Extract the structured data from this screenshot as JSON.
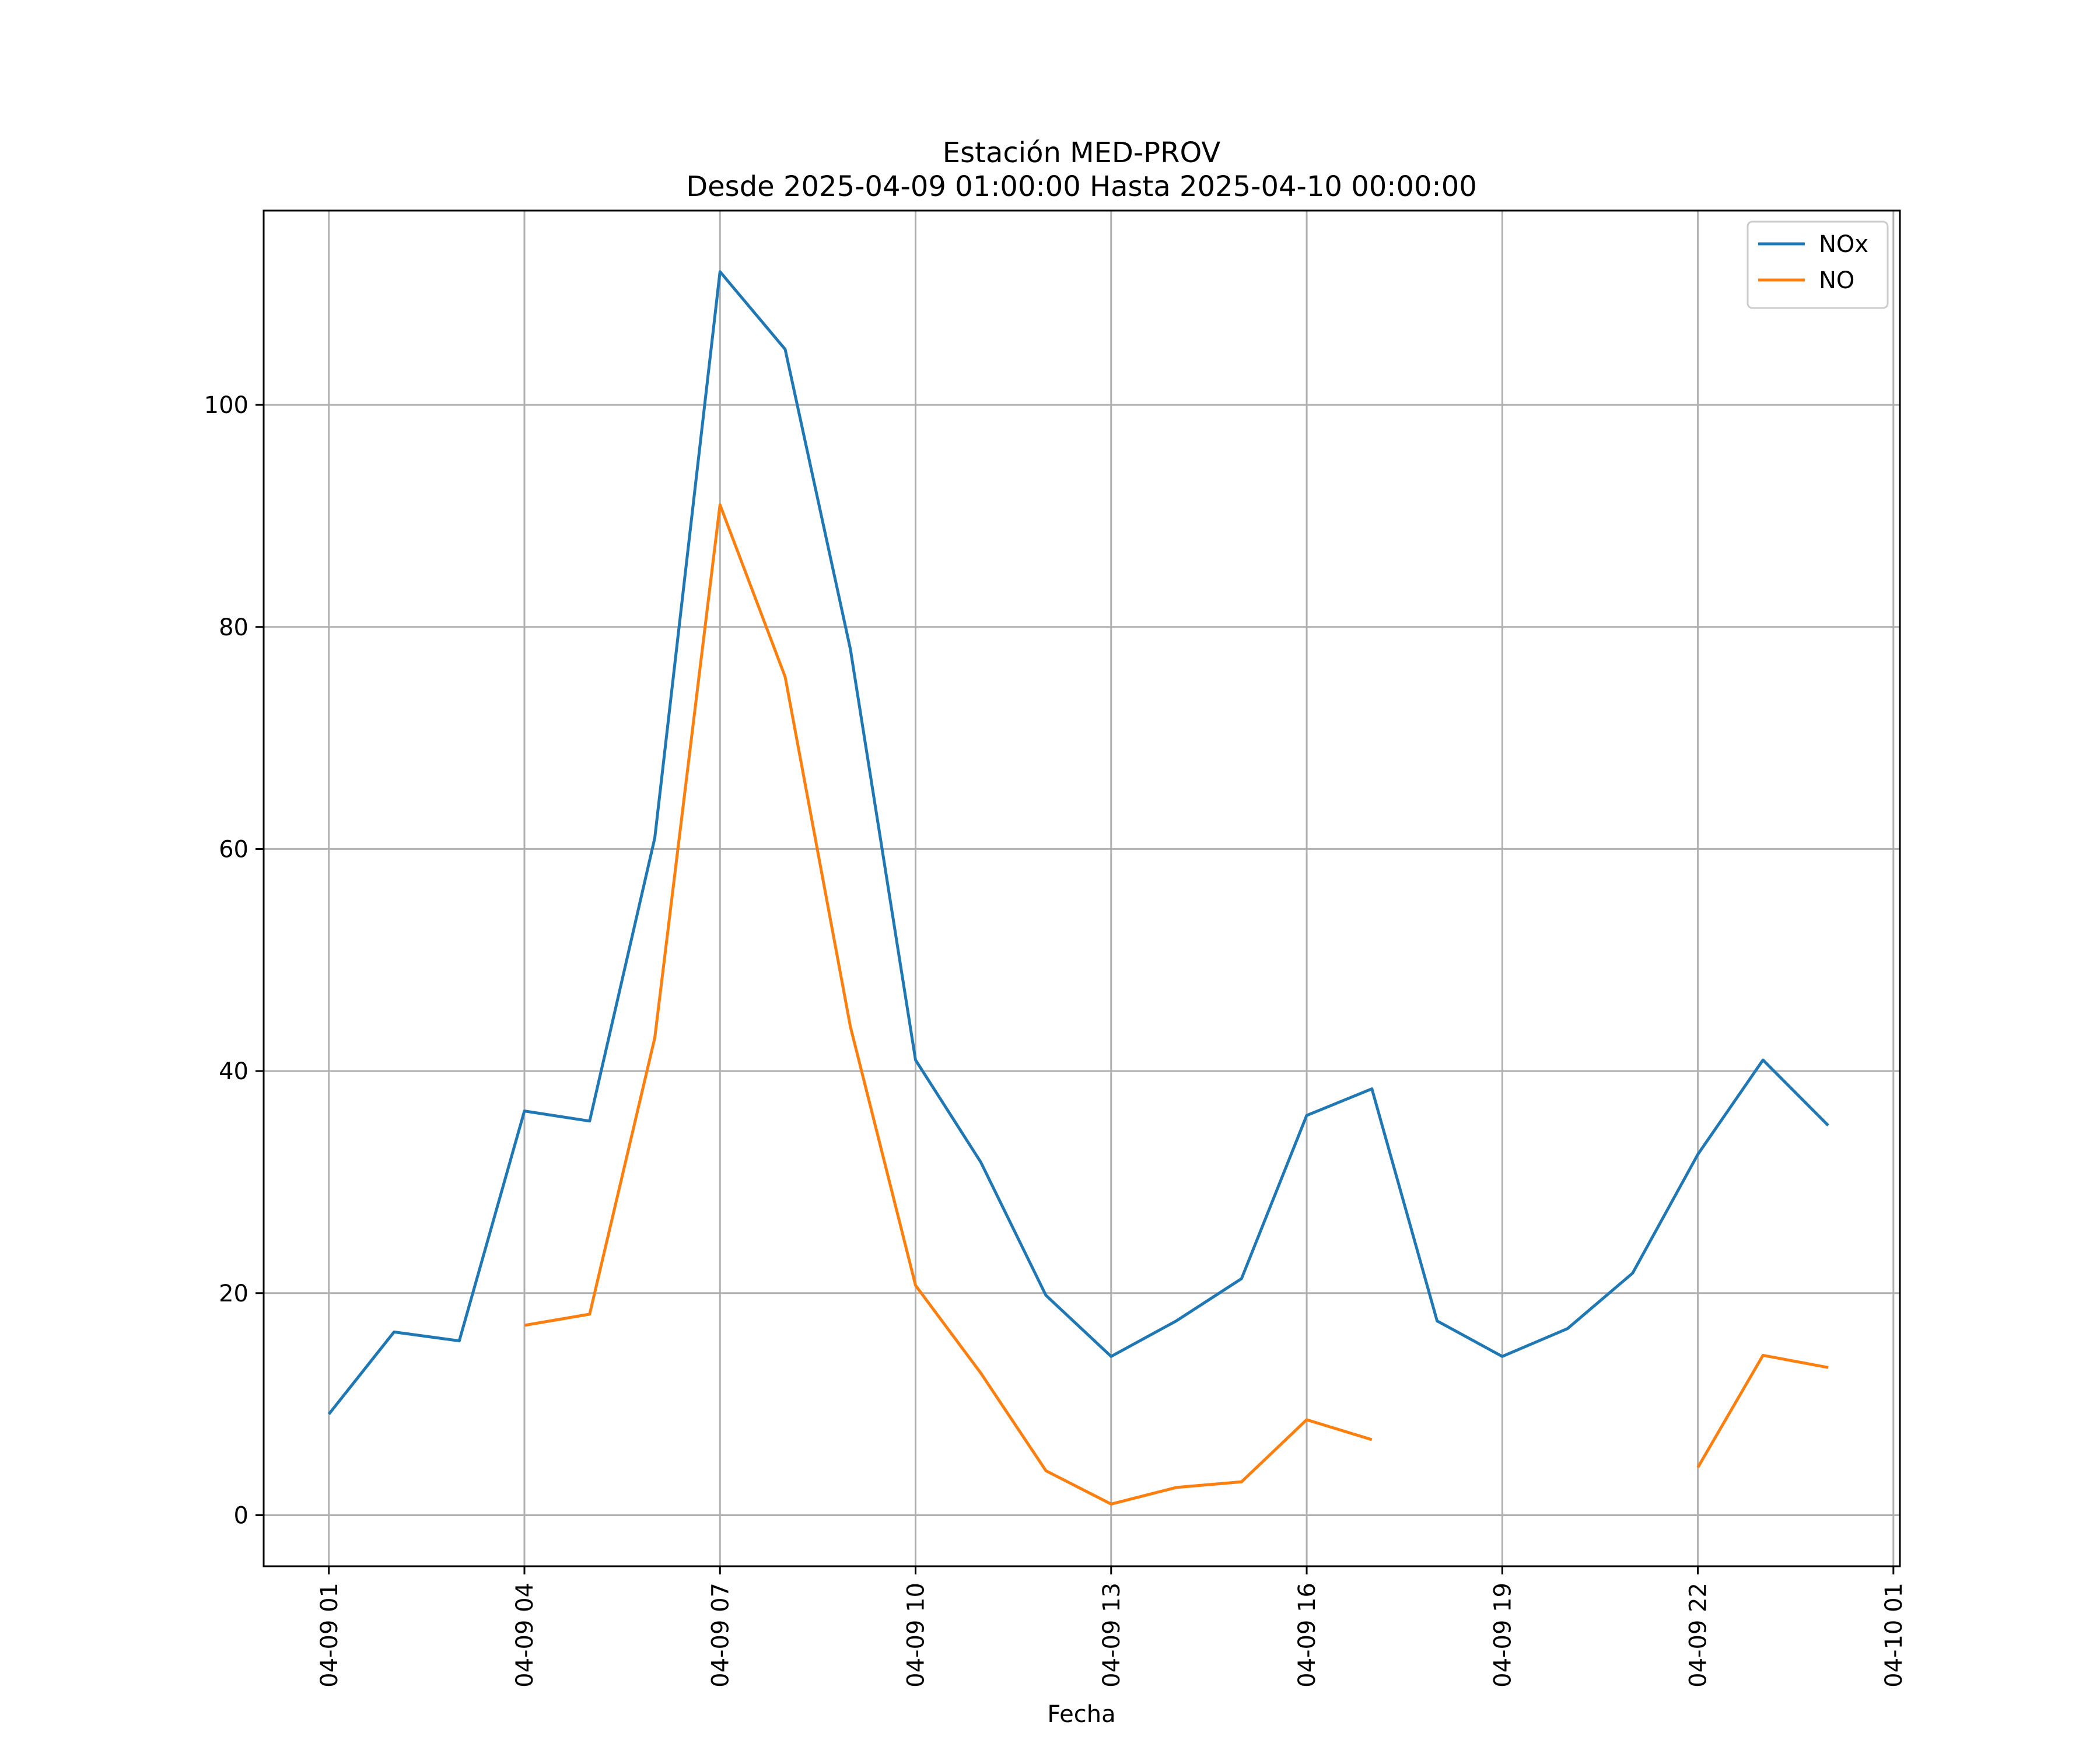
{
  "chart_data": {
    "type": "line",
    "title": "Estación MED-PROV",
    "subtitle": "Desde 2025-04-09 01:00:00 Hasta 2025-04-10 00:00:00",
    "xlabel": "Fecha",
    "ylabel": "",
    "x": [
      "04-09 01",
      "04-09 02",
      "04-09 03",
      "04-09 04",
      "04-09 05",
      "04-09 06",
      "04-09 07",
      "04-09 08",
      "04-09 09",
      "04-09 10",
      "04-09 11",
      "04-09 12",
      "04-09 13",
      "04-09 14",
      "04-09 15",
      "04-09 16",
      "04-09 17",
      "04-09 18",
      "04-09 19",
      "04-09 20",
      "04-09 21",
      "04-09 22",
      "04-09 23",
      "04-10 00"
    ],
    "xticks": [
      "04-09 01",
      "04-09 04",
      "04-09 07",
      "04-09 10",
      "04-09 13",
      "04-09 16",
      "04-09 19",
      "04-09 22",
      "04-10 01"
    ],
    "xlim": [
      "04-09 00:00",
      "04-10 01:06"
    ],
    "yticks": [
      0,
      20,
      40,
      60,
      80,
      100
    ],
    "ylim": [
      -4.6,
      117.5
    ],
    "grid": true,
    "legend_position": "top-right",
    "series": [
      {
        "name": "NOx",
        "color": "#1f77b4",
        "values": [
          9.1,
          16.5,
          15.7,
          36.4,
          35.5,
          61.0,
          112.0,
          105.0,
          78.0,
          41.0,
          31.8,
          19.8,
          14.3,
          17.5,
          21.3,
          36.0,
          38.4,
          17.5,
          14.3,
          16.8,
          21.8,
          32.5,
          41.0,
          35.1
        ]
      },
      {
        "name": "NO",
        "color": "#ff7f0e",
        "values": [
          null,
          null,
          null,
          17.1,
          18.1,
          43.0,
          91.0,
          75.5,
          44.0,
          20.7,
          12.8,
          4.0,
          1.0,
          2.5,
          3.0,
          8.6,
          6.8,
          null,
          null,
          null,
          null,
          4.3,
          14.4,
          13.3
        ]
      }
    ]
  }
}
